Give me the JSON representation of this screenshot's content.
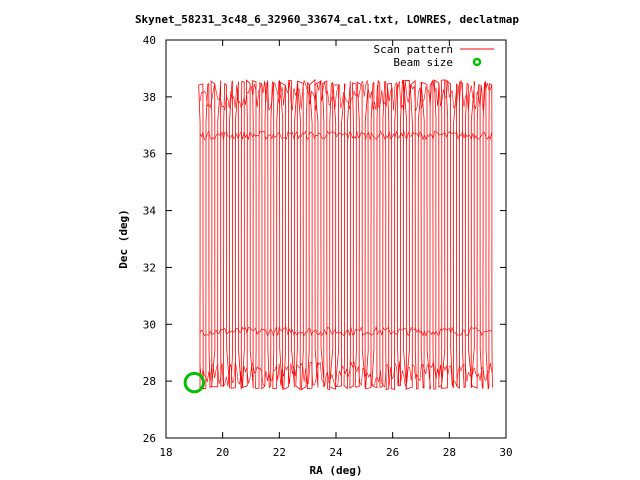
{
  "chart_data": {
    "type": "line",
    "title": "Skynet_58231_3c48_6_32960_33674_cal.txt, LOWRES, declatmap",
    "xlabel": "RA (deg)",
    "ylabel": "Dec (deg)",
    "xlim": [
      18,
      30
    ],
    "ylim": [
      26,
      40
    ],
    "xticks": [
      "18",
      "20",
      "22",
      "24",
      "26",
      "28",
      "30"
    ],
    "yticks": [
      "26",
      "28",
      "30",
      "32",
      "34",
      "36",
      "38",
      "40"
    ],
    "legend": {
      "placement": "top-right"
    },
    "series": [
      {
        "name": "Scan pattern",
        "color": "#ff0000",
        "pattern": "declination raster",
        "ra_range": [
          19.2,
          29.5
        ],
        "dec_range": [
          27.7,
          38.6
        ],
        "num_sweeps": 100
      },
      {
        "name": "Beam size",
        "color": "#00c000",
        "marker": "circle",
        "center": [
          19.0,
          27.95
        ],
        "diameter_deg": 0.65
      }
    ]
  }
}
